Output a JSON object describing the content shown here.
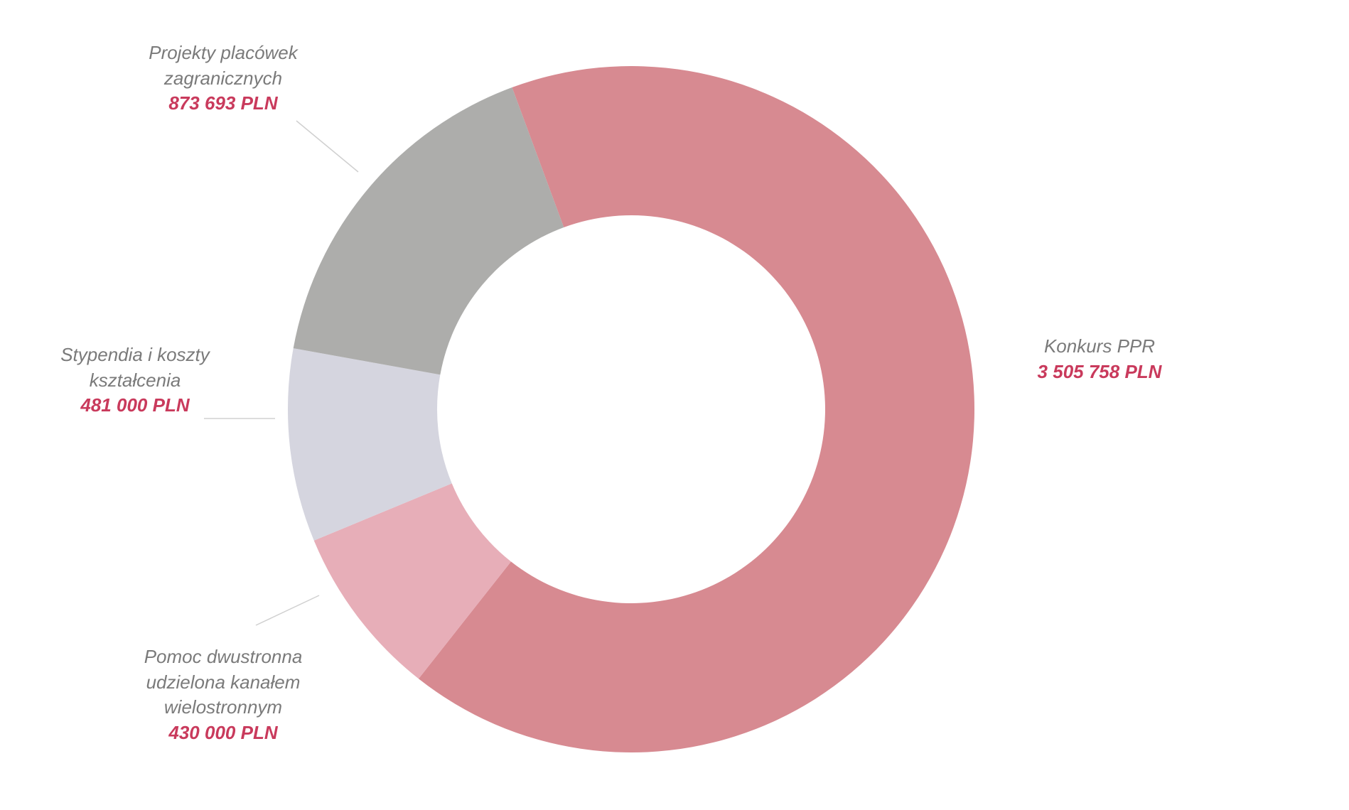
{
  "chart_data": {
    "type": "pie",
    "variant": "donut",
    "categories": [
      "Konkurs PPR",
      "Pomoc dwustronna udzielona kanałem wielostronnym",
      "Stypendia i koszty kształcenia",
      "Projekty placówek zagranicznych"
    ],
    "values": [
      3505758,
      430000,
      481000,
      873693
    ],
    "value_labels": [
      "3 505 758 PLN",
      "430 000 PLN",
      "481 000 PLN",
      "873 693 PLN"
    ],
    "name_lines": [
      [
        "Konkurs PPR"
      ],
      [
        "Pomoc dwustronna",
        "udzielona kanałem",
        "wielostronnym"
      ],
      [
        "Stypendia i koszty",
        "kształcenia"
      ],
      [
        "Projekty placówek",
        "zagranicznych"
      ]
    ],
    "colors": [
      "#d78a91",
      "#e7aeb8",
      "#d5d5df",
      "#adadab"
    ],
    "label_name_color": "#7a7a7a",
    "label_value_color": "#c93a5c"
  }
}
